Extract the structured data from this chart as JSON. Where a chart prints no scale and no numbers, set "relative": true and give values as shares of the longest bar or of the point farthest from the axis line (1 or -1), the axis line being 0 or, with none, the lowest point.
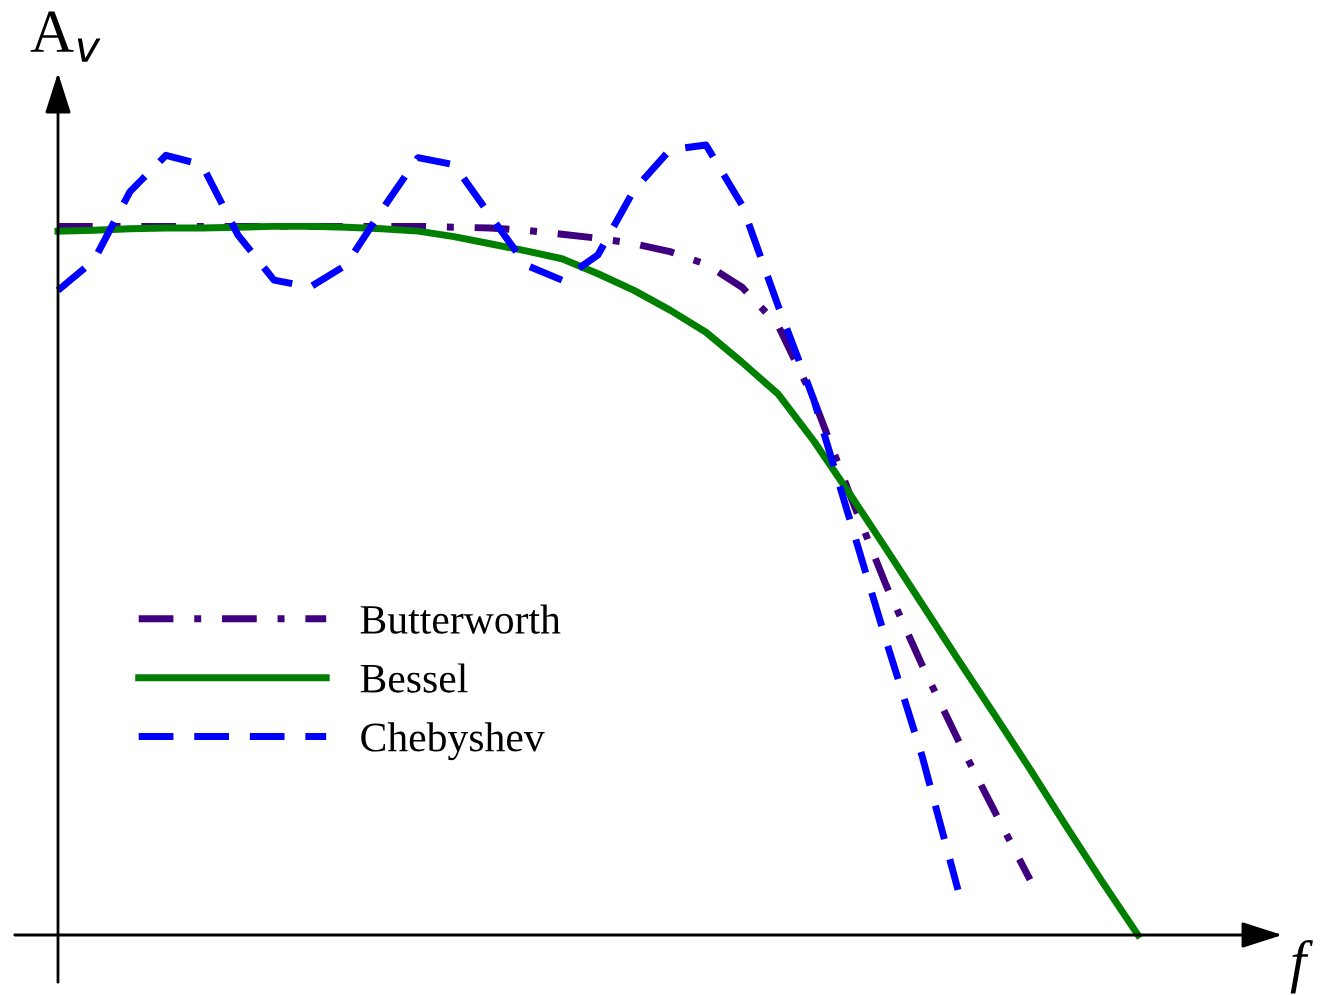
{
  "chart_data": {
    "type": "line",
    "relative": true,
    "xlabel": "f",
    "ylabel": "A$_{v}$",
    "categories": [
      null,
      null,
      null,
      null,
      null,
      null,
      null,
      null,
      null,
      null,
      null,
      null,
      null,
      null,
      null,
      null,
      null,
      null,
      null,
      null,
      null,
      null,
      null,
      null,
      null,
      null,
      null,
      null,
      null,
      null,
      null
    ],
    "series": [
      {
        "name": "Butterworth",
        "color": "#3f007f",
        "line_style": "dashdot",
        "values": [
          0.897,
          0.897,
          0.897,
          0.897,
          0.897,
          0.897,
          0.897,
          0.897,
          0.897,
          0.897,
          0.897,
          0.896,
          0.895,
          0.892,
          0.887,
          0.882,
          0.875,
          0.865,
          0.849,
          0.82,
          0.772,
          0.677,
          0.557,
          0.443,
          0.342,
          0.247,
          0.158,
          0.07,
          null,
          null,
          null
        ]
      },
      {
        "name": "Bessel",
        "color": "#007f00",
        "line_style": "solid",
        "values": [
          0.891,
          0.892,
          0.894,
          0.895,
          0.895,
          0.896,
          0.897,
          0.897,
          0.896,
          0.894,
          0.891,
          0.884,
          0.875,
          0.866,
          0.856,
          0.837,
          0.816,
          0.791,
          0.763,
          0.725,
          0.685,
          0.625,
          0.558,
          0.489,
          0.419,
          0.349,
          0.28,
          0.21,
          0.138,
          0.068,
          0
        ]
      },
      {
        "name": "Chebyshev",
        "color": "#0000ff",
        "line_style": "dashed",
        "values": [
          0.816,
          0.854,
          0.941,
          0.987,
          0.975,
          0.886,
          0.829,
          0.82,
          0.848,
          0.918,
          0.984,
          0.975,
          0.911,
          0.848,
          0.829,
          0.861,
          0.943,
          0.994,
          1.0,
          0.924,
          0.797,
          0.677,
          0.525,
          0.373,
          0.227,
          0.057,
          null,
          null,
          null,
          null,
          null
        ]
      }
    ],
    "legend": "left",
    "grid": false,
    "marker": "none"
  }
}
